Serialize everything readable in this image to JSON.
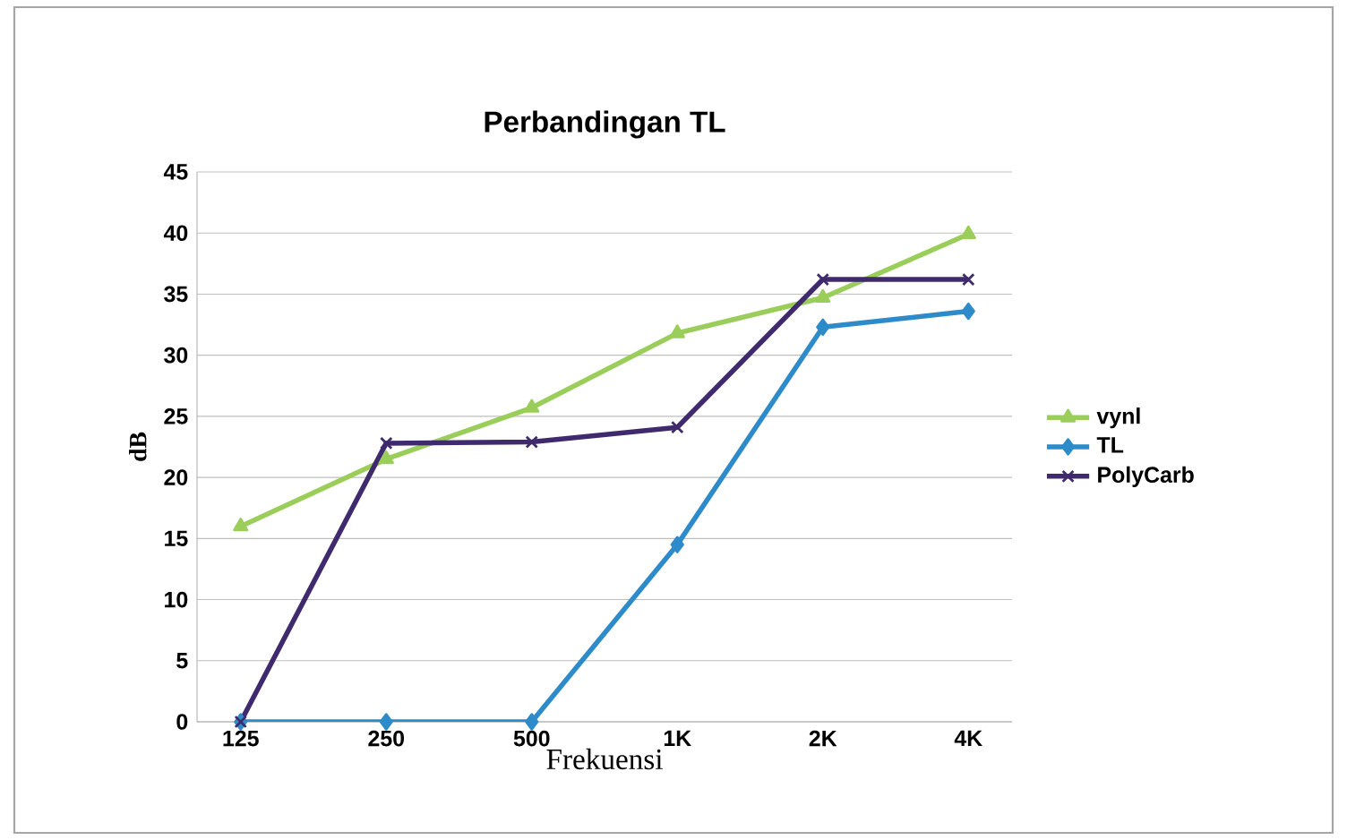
{
  "chart_data": {
    "type": "line",
    "title": "Perbandingan TL",
    "xlabel": "Frekuensi",
    "ylabel": "dB",
    "categories": [
      "125",
      "250",
      "500",
      "1K",
      "2K",
      "4K"
    ],
    "series": [
      {
        "name": "vynl",
        "color": "#9acd5a",
        "marker": "triangle",
        "values": [
          16,
          21.5,
          25.7,
          31.8,
          34.7,
          39.9
        ]
      },
      {
        "name": "TL",
        "color": "#2e8bc9",
        "marker": "diamond",
        "values": [
          0,
          0,
          0,
          14.5,
          32.3,
          33.6
        ]
      },
      {
        "name": "PolyCarb",
        "color": "#3f2a6e",
        "marker": "cross",
        "values": [
          0,
          22.8,
          22.9,
          24.1,
          36.2,
          36.2
        ]
      }
    ],
    "ylim": [
      0,
      45
    ],
    "yticks": [
      0,
      5,
      10,
      15,
      20,
      25,
      30,
      35,
      40,
      45
    ],
    "grid": "y",
    "legend": "right",
    "line_style": "solid"
  }
}
